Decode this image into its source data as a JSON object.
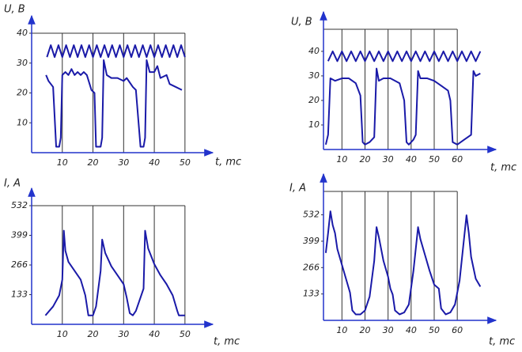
{
  "chart_data": [
    {
      "type": "line",
      "x_label": "t, mc",
      "y_label": "U, B",
      "xlim": [
        0,
        57
      ],
      "ylim": [
        0,
        40
      ],
      "xticks": [
        10,
        20,
        30,
        40,
        50
      ],
      "yticks": [
        10,
        20,
        30,
        40
      ],
      "grid": true,
      "series": [
        {
          "color": "#1a1aa8",
          "x": [
            5,
            6.25,
            7.5,
            8.75,
            10,
            11.25,
            12.5,
            13.75,
            15,
            16.25,
            17.5,
            18.75,
            20,
            21.25,
            22.5,
            23.75,
            25,
            26.25,
            27.5,
            28.75,
            30,
            31.25,
            32.5,
            33.75,
            35,
            36.25,
            37.5,
            38.75,
            40,
            41.25,
            42.5,
            43.75,
            45,
            46.25,
            47.5,
            48.75,
            50
          ],
          "values": [
            32,
            36,
            32,
            36,
            32,
            36,
            32,
            36,
            32,
            36,
            32,
            36,
            32,
            36,
            32,
            36,
            32,
            36,
            32,
            36,
            32,
            36,
            32,
            36,
            32,
            36,
            32,
            36,
            32,
            36,
            32,
            36,
            32,
            36,
            32,
            36,
            32
          ]
        },
        {
          "color": "#1a1aa8",
          "x": [
            4.7,
            5.5,
            7,
            8,
            9,
            9.5,
            10,
            11,
            12,
            13,
            14,
            15,
            16,
            17,
            18,
            19.5,
            20.5,
            21,
            22.5,
            23,
            23.5,
            24.5,
            26,
            28,
            30,
            31,
            33,
            34,
            35.5,
            36.5,
            37,
            37.5,
            38.5,
            40,
            41,
            42,
            44,
            45,
            47,
            49
          ],
          "values": [
            26,
            24,
            22,
            2,
            2,
            5,
            26,
            27,
            26,
            28,
            26,
            27,
            26,
            27,
            26,
            21,
            20,
            2,
            2,
            5,
            31,
            26,
            25,
            25,
            24,
            25,
            22,
            21,
            2,
            2,
            5,
            31,
            27,
            27,
            29,
            25,
            26,
            23,
            22,
            21
          ]
        }
      ]
    },
    {
      "type": "line",
      "x_label": "t, mc",
      "y_label": "U, B",
      "xlim": [
        2,
        74
      ],
      "ylim": [
        0,
        49
      ],
      "xticks": [
        10,
        20,
        30,
        40,
        50,
        60
      ],
      "yticks": [
        10,
        20,
        30,
        40
      ],
      "grid": true,
      "series": [
        {
          "color": "#1a1aa8",
          "x": [
            4,
            6,
            8,
            10,
            12,
            14,
            16,
            18,
            20,
            22,
            24,
            26,
            28,
            30,
            32,
            34,
            36,
            38,
            40,
            42,
            44,
            46,
            48,
            50,
            52,
            54,
            56,
            58,
            60,
            62,
            64,
            66,
            68,
            70
          ],
          "values": [
            36,
            40,
            36,
            40,
            36,
            40,
            36,
            40,
            36,
            40,
            36,
            40,
            36,
            40,
            36,
            40,
            36,
            40,
            36,
            40,
            36,
            40,
            36,
            40,
            36,
            40,
            36,
            40,
            36,
            40,
            36,
            40,
            36,
            40
          ]
        },
        {
          "color": "#1a1aa8",
          "x": [
            3,
            4,
            5,
            7,
            10,
            13,
            16,
            18,
            19,
            20,
            22,
            24,
            25,
            26,
            28,
            31,
            35,
            37,
            38,
            39,
            41,
            42,
            43,
            44,
            47,
            50,
            53,
            56,
            57,
            58,
            60,
            63,
            66,
            67,
            68,
            70
          ],
          "values": [
            2,
            6,
            29,
            28,
            29,
            29,
            27,
            22,
            3,
            2,
            3,
            5,
            33,
            28,
            29,
            29,
            27,
            20,
            3,
            2,
            4,
            6,
            32,
            29,
            29,
            28,
            26,
            24,
            20,
            3,
            2,
            4,
            6,
            32,
            30,
            31
          ]
        }
      ]
    },
    {
      "type": "line",
      "x_label": "t, mc",
      "y_label": "I, A",
      "xlim": [
        0,
        57
      ],
      "ylim": [
        0,
        532
      ],
      "xticks": [
        10,
        20,
        30,
        40,
        50
      ],
      "yticks": [
        133,
        266,
        399,
        532
      ],
      "grid": true,
      "series": [
        {
          "color": "#1a1aa8",
          "x": [
            4.5,
            7,
            9,
            10,
            10.5,
            11,
            12,
            14,
            16,
            17.5,
            18.5,
            20,
            21,
            22.5,
            23,
            24,
            26,
            28,
            30,
            31,
            32,
            33,
            34,
            35,
            36.5,
            37,
            38,
            40,
            42,
            44,
            46,
            47.5,
            48,
            50
          ],
          "values": [
            40,
            80,
            130,
            200,
            420,
            330,
            280,
            240,
            200,
            130,
            40,
            40,
            80,
            240,
            380,
            320,
            260,
            220,
            180,
            120,
            50,
            40,
            60,
            100,
            160,
            420,
            340,
            270,
            220,
            180,
            130,
            60,
            40,
            40
          ]
        }
      ]
    },
    {
      "type": "line",
      "x_label": "t, mc",
      "y_label": "I, A",
      "xlim": [
        2,
        74
      ],
      "ylim": [
        0,
        650
      ],
      "xticks": [
        10,
        20,
        30,
        40,
        50,
        60
      ],
      "yticks": [
        133,
        266,
        399,
        532
      ],
      "grid": true,
      "series": [
        {
          "color": "#1a1aa8",
          "x": [
            3,
            4,
            5,
            6,
            7,
            8,
            10,
            12,
            13,
            13.5,
            14.5,
            16,
            18,
            20,
            22,
            24,
            25,
            26,
            28,
            30,
            31,
            32,
            33,
            35,
            37,
            39,
            41,
            43,
            44,
            46,
            48,
            50,
            52,
            53,
            55,
            57,
            59,
            61,
            63,
            64,
            65,
            66,
            68,
            70
          ],
          "values": [
            340,
            440,
            550,
            480,
            440,
            360,
            280,
            200,
            160,
            140,
            50,
            30,
            30,
            50,
            120,
            300,
            470,
            420,
            300,
            220,
            160,
            130,
            50,
            30,
            40,
            80,
            250,
            470,
            410,
            330,
            250,
            180,
            160,
            60,
            30,
            40,
            80,
            200,
            420,
            530,
            440,
            320,
            210,
            170
          ]
        }
      ]
    }
  ]
}
